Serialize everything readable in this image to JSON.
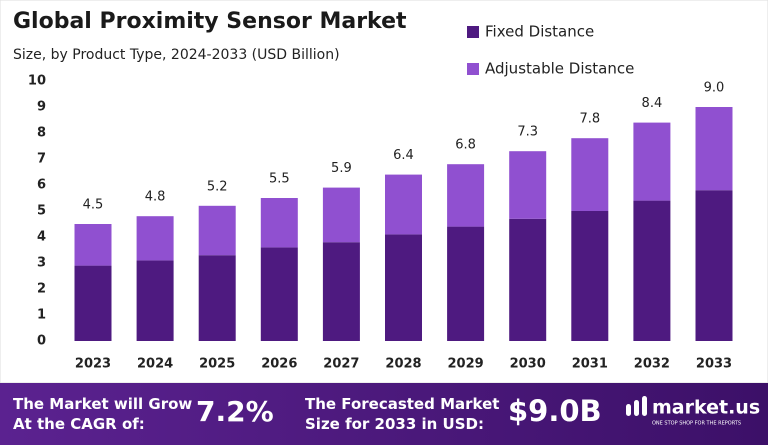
{
  "chart_data": {
    "type": "stacked_bar",
    "title": "Global Proximity Sensor Market",
    "subtitle": "Size, by Product Type, 2024-2033 (USD Billion)",
    "categories": [
      "2023",
      "2024",
      "2025",
      "2026",
      "2027",
      "2028",
      "2029",
      "2030",
      "2031",
      "2032",
      "2033"
    ],
    "series": [
      {
        "name": "Fixed Distance",
        "color": "#4e1a80",
        "values": [
          2.9,
          3.1,
          3.3,
          3.6,
          3.8,
          4.1,
          4.4,
          4.7,
          5.0,
          5.4,
          5.8
        ]
      },
      {
        "name": "Adjustable Distance",
        "color": "#9050d0",
        "values": [
          1.6,
          1.7,
          1.9,
          1.9,
          2.1,
          2.3,
          2.4,
          2.6,
          2.8,
          3.0,
          3.2
        ]
      }
    ],
    "totals": [
      4.5,
      4.8,
      5.2,
      5.5,
      5.9,
      6.4,
      6.8,
      7.3,
      7.8,
      8.4,
      9.0
    ],
    "total_labels": [
      "4.5",
      "4.8",
      "5.2",
      "5.5",
      "5.9",
      "6.4",
      "6.8",
      "7.3",
      "7.8",
      "8.4",
      "9.0"
    ],
    "ylim": [
      0,
      10
    ],
    "yticks": [
      0,
      1,
      2,
      3,
      4,
      5,
      6,
      7,
      8,
      9,
      10
    ],
    "grid": false,
    "legend": "top-right"
  },
  "footer": {
    "cagr_text": [
      "The Market will Grow",
      "At the CAGR of:"
    ],
    "cagr": "7.2%",
    "forecast_text": [
      "The Forecasted Market",
      "Size for 2033 in USD:"
    ],
    "forecast": "$9.0B",
    "brand": "market.us",
    "tagline": "ONE STOP SHOP FOR THE REPORTS"
  }
}
